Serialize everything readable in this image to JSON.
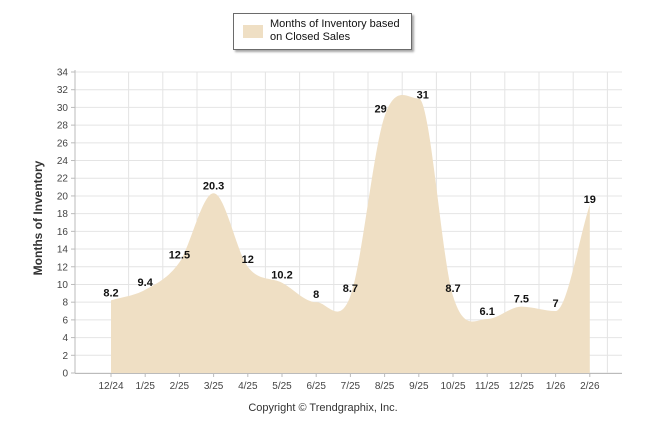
{
  "chart_data": {
    "type": "area",
    "categories": [
      "12/24",
      "1/25",
      "2/25",
      "3/25",
      "4/25",
      "5/25",
      "6/25",
      "7/25",
      "8/25",
      "9/25",
      "10/25",
      "11/25",
      "12/25",
      "1/26",
      "2/26"
    ],
    "series": [
      {
        "name": "Months of Inventory based on Closed Sales",
        "values": [
          8.2,
          9.4,
          12.5,
          20.3,
          12,
          10.2,
          8,
          8.7,
          29,
          31,
          8.7,
          6.1,
          7.5,
          7,
          19
        ]
      }
    ],
    "data_labels": [
      "8.2",
      "9.4",
      "12.5",
      "20.3",
      "12",
      "10.2",
      "8",
      "8.7",
      "29",
      "31",
      "8.7",
      "6.1",
      "7.5",
      "7",
      "19"
    ],
    "ylabel": "Months of Inventory",
    "xlabel": "",
    "ylim": [
      0,
      34
    ],
    "yticks": [
      0,
      2,
      4,
      6,
      8,
      10,
      12,
      14,
      16,
      18,
      20,
      22,
      24,
      26,
      28,
      30,
      32,
      34
    ],
    "grid": true,
    "legend_position": "top-center",
    "colors": {
      "fill": "#efdfc4",
      "grid": "#e4e4e4",
      "axis": "#bbbbbb"
    }
  },
  "legend": {
    "line1": "Months of Inventory based",
    "line2": "on Closed Sales"
  },
  "footer": {
    "copyright": "Copyright © Trendgraphix, Inc."
  }
}
